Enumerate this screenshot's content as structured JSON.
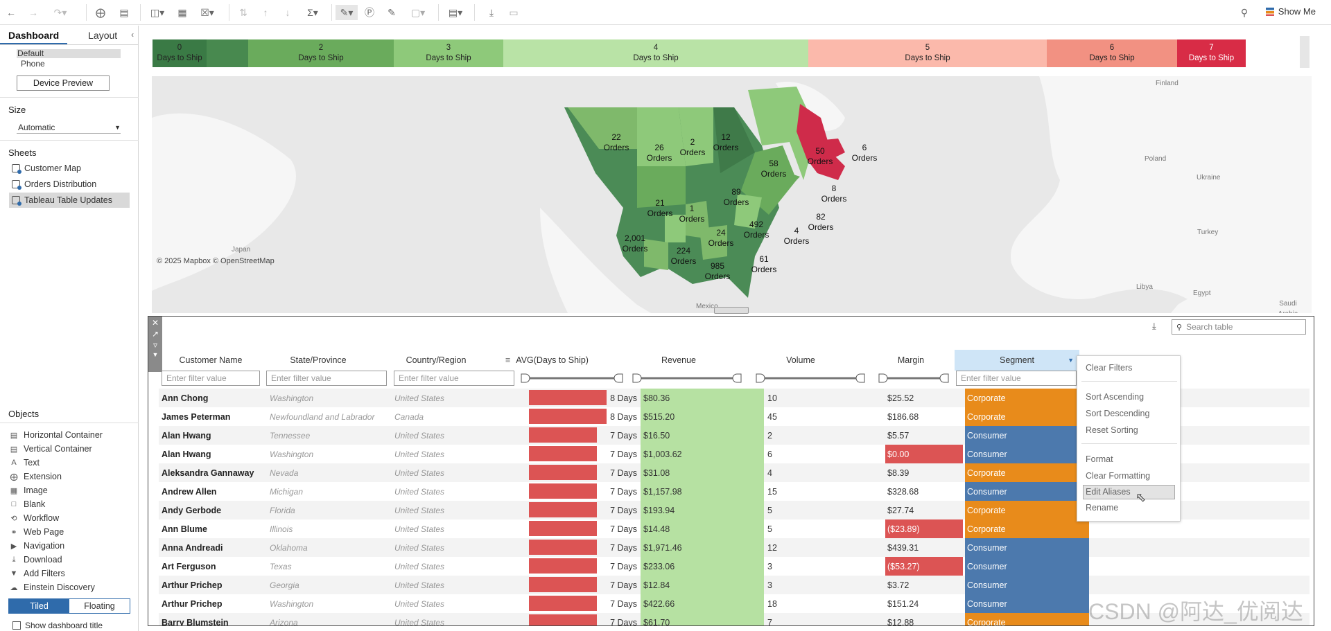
{
  "toolbar": {
    "show_me": "Show Me"
  },
  "left": {
    "tabs": [
      "Dashboard",
      "Layout"
    ],
    "device": {
      "default": "Default",
      "phone": "Phone",
      "preview_button": "Device Preview"
    },
    "size": {
      "heading": "Size",
      "value": "Automatic"
    },
    "sheets": {
      "heading": "Sheets",
      "items": [
        "Customer Map",
        "Orders Distribution",
        "Tableau Table Updates"
      ]
    },
    "objects": {
      "heading": "Objects",
      "items": [
        "Horizontal Container",
        "Vertical Container",
        "Text",
        "Extension",
        "Image",
        "Blank",
        "Workflow",
        "Web Page",
        "Navigation",
        "Download",
        "Add Filters",
        "Einstein Discovery"
      ]
    },
    "mode": {
      "tiled": "Tiled",
      "floating": "Floating"
    },
    "show_title": "Show dashboard title"
  },
  "legend": [
    {
      "num": "0",
      "label": "Days to Ship",
      "color": "#3a7a45"
    },
    {
      "num": "",
      "label": "",
      "color": "#48894f"
    },
    {
      "num": "2",
      "label": "Days to Ship",
      "color": "#6aab5c"
    },
    {
      "num": "3",
      "label": "Days to Ship",
      "color": "#8ec97a"
    },
    {
      "num": "4",
      "label": "Days to Ship",
      "color": "#b9e3a6"
    },
    {
      "num": "5",
      "label": "Days to Ship",
      "color": "#fbb9ab"
    },
    {
      "num": "6",
      "label": "Days to Ship",
      "color": "#f29182"
    },
    {
      "num": "7",
      "label": "Days to Ship",
      "color": "#d82c46"
    }
  ],
  "map": {
    "attribution": "© 2025 Mapbox  © OpenStreetMap",
    "places": [
      "Japan",
      "Finland",
      "Poland",
      "Ukraine",
      "Turkey",
      "Libya",
      "Egypt",
      "Saudi Arabia",
      "Mexico"
    ],
    "orders": [
      {
        "n": "22",
        "t": "Orders"
      },
      {
        "n": "26",
        "t": "Orders"
      },
      {
        "n": "2",
        "t": "Orders"
      },
      {
        "n": "12",
        "t": "Orders"
      },
      {
        "n": "58",
        "t": "Orders"
      },
      {
        "n": "50",
        "t": "Orders"
      },
      {
        "n": "6",
        "t": "Orders"
      },
      {
        "n": "89",
        "t": "Orders"
      },
      {
        "n": "8",
        "t": "Orders"
      },
      {
        "n": "21",
        "t": "Orders"
      },
      {
        "n": "1",
        "t": "Orders"
      },
      {
        "n": "82",
        "t": "Orders"
      },
      {
        "n": "492",
        "t": "Orders"
      },
      {
        "n": "4",
        "t": "Orders"
      },
      {
        "n": "24",
        "t": "Orders"
      },
      {
        "n": "2,001",
        "t": "Orders"
      },
      {
        "n": "224",
        "t": "Orders"
      },
      {
        "n": "61",
        "t": "Orders"
      },
      {
        "n": "985",
        "t": "Orders"
      }
    ]
  },
  "table": {
    "search_placeholder": "Search table",
    "columns": [
      "Customer Name",
      "State/Province",
      "Country/Region",
      "AVG(Days to Ship)",
      "Revenue",
      "Volume",
      "Margin",
      "Segment"
    ],
    "filter_placeholder": "Enter filter value",
    "days_max": 8,
    "rows": [
      {
        "name": "Ann Chong",
        "state": "Washington",
        "country": "United States",
        "days": 8,
        "days_label": "8 Days",
        "revenue": "$80.36",
        "volume": "10",
        "margin": "$25.52",
        "margin_neg": false,
        "segment": "Corporate"
      },
      {
        "name": "James Peterman",
        "state": "Newfoundland and Labrador",
        "country": "Canada",
        "days": 8,
        "days_label": "8 Days",
        "revenue": "$515.20",
        "volume": "45",
        "margin": "$186.68",
        "margin_neg": false,
        "segment": "Corporate"
      },
      {
        "name": "Alan Hwang",
        "state": "Tennessee",
        "country": "United States",
        "days": 7,
        "days_label": "7 Days",
        "revenue": "$16.50",
        "volume": "2",
        "margin": "$5.57",
        "margin_neg": false,
        "segment": "Consumer"
      },
      {
        "name": "Alan Hwang",
        "state": "Washington",
        "country": "United States",
        "days": 7,
        "days_label": "7 Days",
        "revenue": "$1,003.62",
        "volume": "6",
        "margin": "$0.00",
        "margin_neg": true,
        "segment": "Consumer"
      },
      {
        "name": "Aleksandra Gannaway",
        "state": "Nevada",
        "country": "United States",
        "days": 7,
        "days_label": "7 Days",
        "revenue": "$31.08",
        "volume": "4",
        "margin": "$8.39",
        "margin_neg": false,
        "segment": "Corporate"
      },
      {
        "name": "Andrew Allen",
        "state": "Michigan",
        "country": "United States",
        "days": 7,
        "days_label": "7 Days",
        "revenue": "$1,157.98",
        "volume": "15",
        "margin": "$328.68",
        "margin_neg": false,
        "segment": "Consumer"
      },
      {
        "name": "Andy Gerbode",
        "state": "Florida",
        "country": "United States",
        "days": 7,
        "days_label": "7 Days",
        "revenue": "$193.94",
        "volume": "5",
        "margin": "$27.74",
        "margin_neg": false,
        "segment": "Corporate"
      },
      {
        "name": "Ann Blume",
        "state": "Illinois",
        "country": "United States",
        "days": 7,
        "days_label": "7 Days",
        "revenue": "$14.48",
        "volume": "5",
        "margin": "($23.89)",
        "margin_neg": true,
        "segment": "Corporate"
      },
      {
        "name": "Anna Andreadi",
        "state": "Oklahoma",
        "country": "United States",
        "days": 7,
        "days_label": "7 Days",
        "revenue": "$1,971.46",
        "volume": "12",
        "margin": "$439.31",
        "margin_neg": false,
        "segment": "Consumer"
      },
      {
        "name": "Art Ferguson",
        "state": "Texas",
        "country": "United States",
        "days": 7,
        "days_label": "7 Days",
        "revenue": "$233.06",
        "volume": "3",
        "margin": "($53.27)",
        "margin_neg": true,
        "segment": "Consumer"
      },
      {
        "name": "Arthur Prichep",
        "state": "Georgia",
        "country": "United States",
        "days": 7,
        "days_label": "7 Days",
        "revenue": "$12.84",
        "volume": "3",
        "margin": "$3.72",
        "margin_neg": false,
        "segment": "Consumer"
      },
      {
        "name": "Arthur Prichep",
        "state": "Washington",
        "country": "United States",
        "days": 7,
        "days_label": "7 Days",
        "revenue": "$422.66",
        "volume": "18",
        "margin": "$151.24",
        "margin_neg": false,
        "segment": "Consumer"
      },
      {
        "name": "Barry Blumstein",
        "state": "Arizona",
        "country": "United States",
        "days": 7,
        "days_label": "7 Days",
        "revenue": "$61.70",
        "volume": "7",
        "margin": "$12.88",
        "margin_neg": false,
        "segment": "Corporate"
      }
    ]
  },
  "context_menu": [
    "Clear Filters",
    "Sort Ascending",
    "Sort Descending",
    "Reset Sorting",
    "Format",
    "Clear Formatting",
    "Edit Aliases",
    "Rename"
  ],
  "watermark": "CSDN @阿达_优阅达",
  "colors": {
    "corporate": "#e88b1b",
    "consumer": "#4c79ad",
    "days_bar": "#dc5454",
    "revenue": "#b6e1a2",
    "neg_margin": "#dc5454",
    "accent": "#2f6bab"
  }
}
